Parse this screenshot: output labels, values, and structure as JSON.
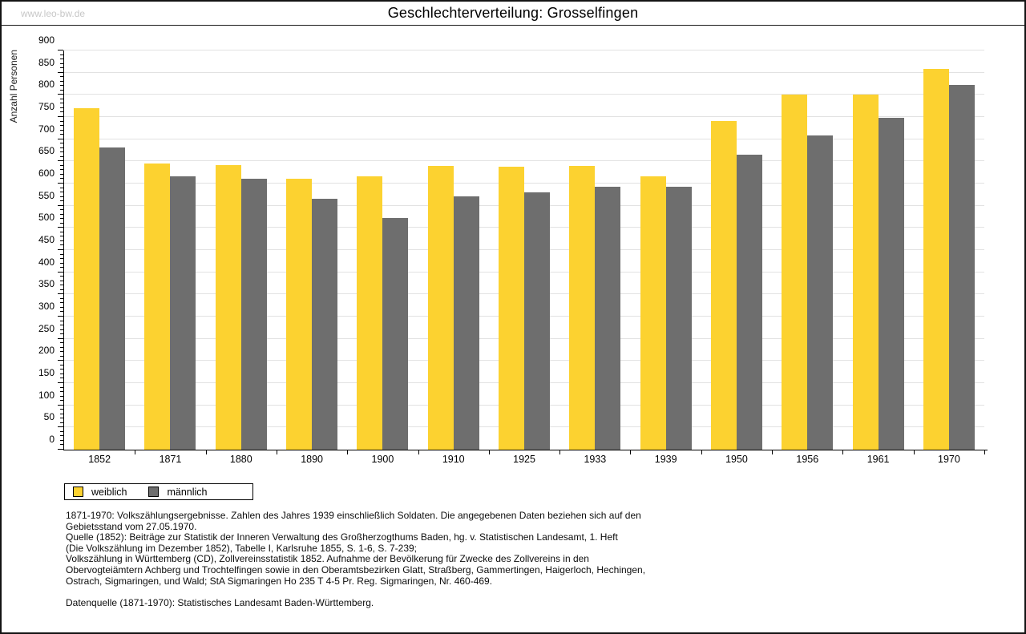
{
  "watermark": "www.leo-bw.de",
  "chart_data": {
    "type": "bar",
    "title": "Geschlechterverteilung: Grosselfingen",
    "ylabel": "Anzahl Personen",
    "xlabel": "",
    "ylim": [
      0,
      900
    ],
    "ytick_step": 50,
    "ytick_minor_step": 10,
    "grid": true,
    "legend_position": "bottom-left",
    "categories": [
      "1852",
      "1871",
      "1880",
      "1890",
      "1900",
      "1910",
      "1925",
      "1933",
      "1939",
      "1950",
      "1956",
      "1961",
      "1970"
    ],
    "series": [
      {
        "name": "weiblich",
        "color": "#FCD230",
        "values": [
          770,
          645,
          641,
          611,
          616,
          640,
          638,
          639,
          616,
          741,
          800,
          800,
          858
        ]
      },
      {
        "name": "männlich",
        "color": "#6E6E6E",
        "values": [
          681,
          616,
          611,
          566,
          523,
          572,
          580,
          593,
          593,
          665,
          708,
          748,
          823
        ]
      }
    ],
    "axis_color": "#000000",
    "gridline_color": "#e2e2e2"
  },
  "notes": {
    "lines": [
      "1871-1970: Volkszählungsergebnisse. Zahlen des Jahres 1939 einschließlich Soldaten. Die angegebenen Daten beziehen sich auf den",
      "Gebietsstand vom 27.05.1970.",
      "Quelle (1852): Beiträge zur Statistik der Inneren Verwaltung des Großherzogthums Baden, hg. v. Statistischen Landesamt, 1. Heft",
      "(Die Volkszählung im Dezember 1852), Tabelle I, Karlsruhe 1855, S. 1-6, S. 7-239;",
      "Volkszählung in Württemberg (CD), Zollvereinsstatistik 1852. Aufnahme der Bevölkerung für Zwecke des Zollvereins in den",
      "Obervogteiämtern Achberg und Trochtelfingen sowie in den Oberamtsbezirken Glatt, Straßberg, Gammertingen, Haigerloch, Hechingen,",
      "Ostrach, Sigmaringen, und Wald; StA Sigmaringen Ho 235 T 4-5 Pr. Reg. Sigmaringen, Nr. 460-469.",
      "",
      "Datenquelle (1871-1970): Statistisches Landesamt Baden-Württemberg."
    ]
  }
}
